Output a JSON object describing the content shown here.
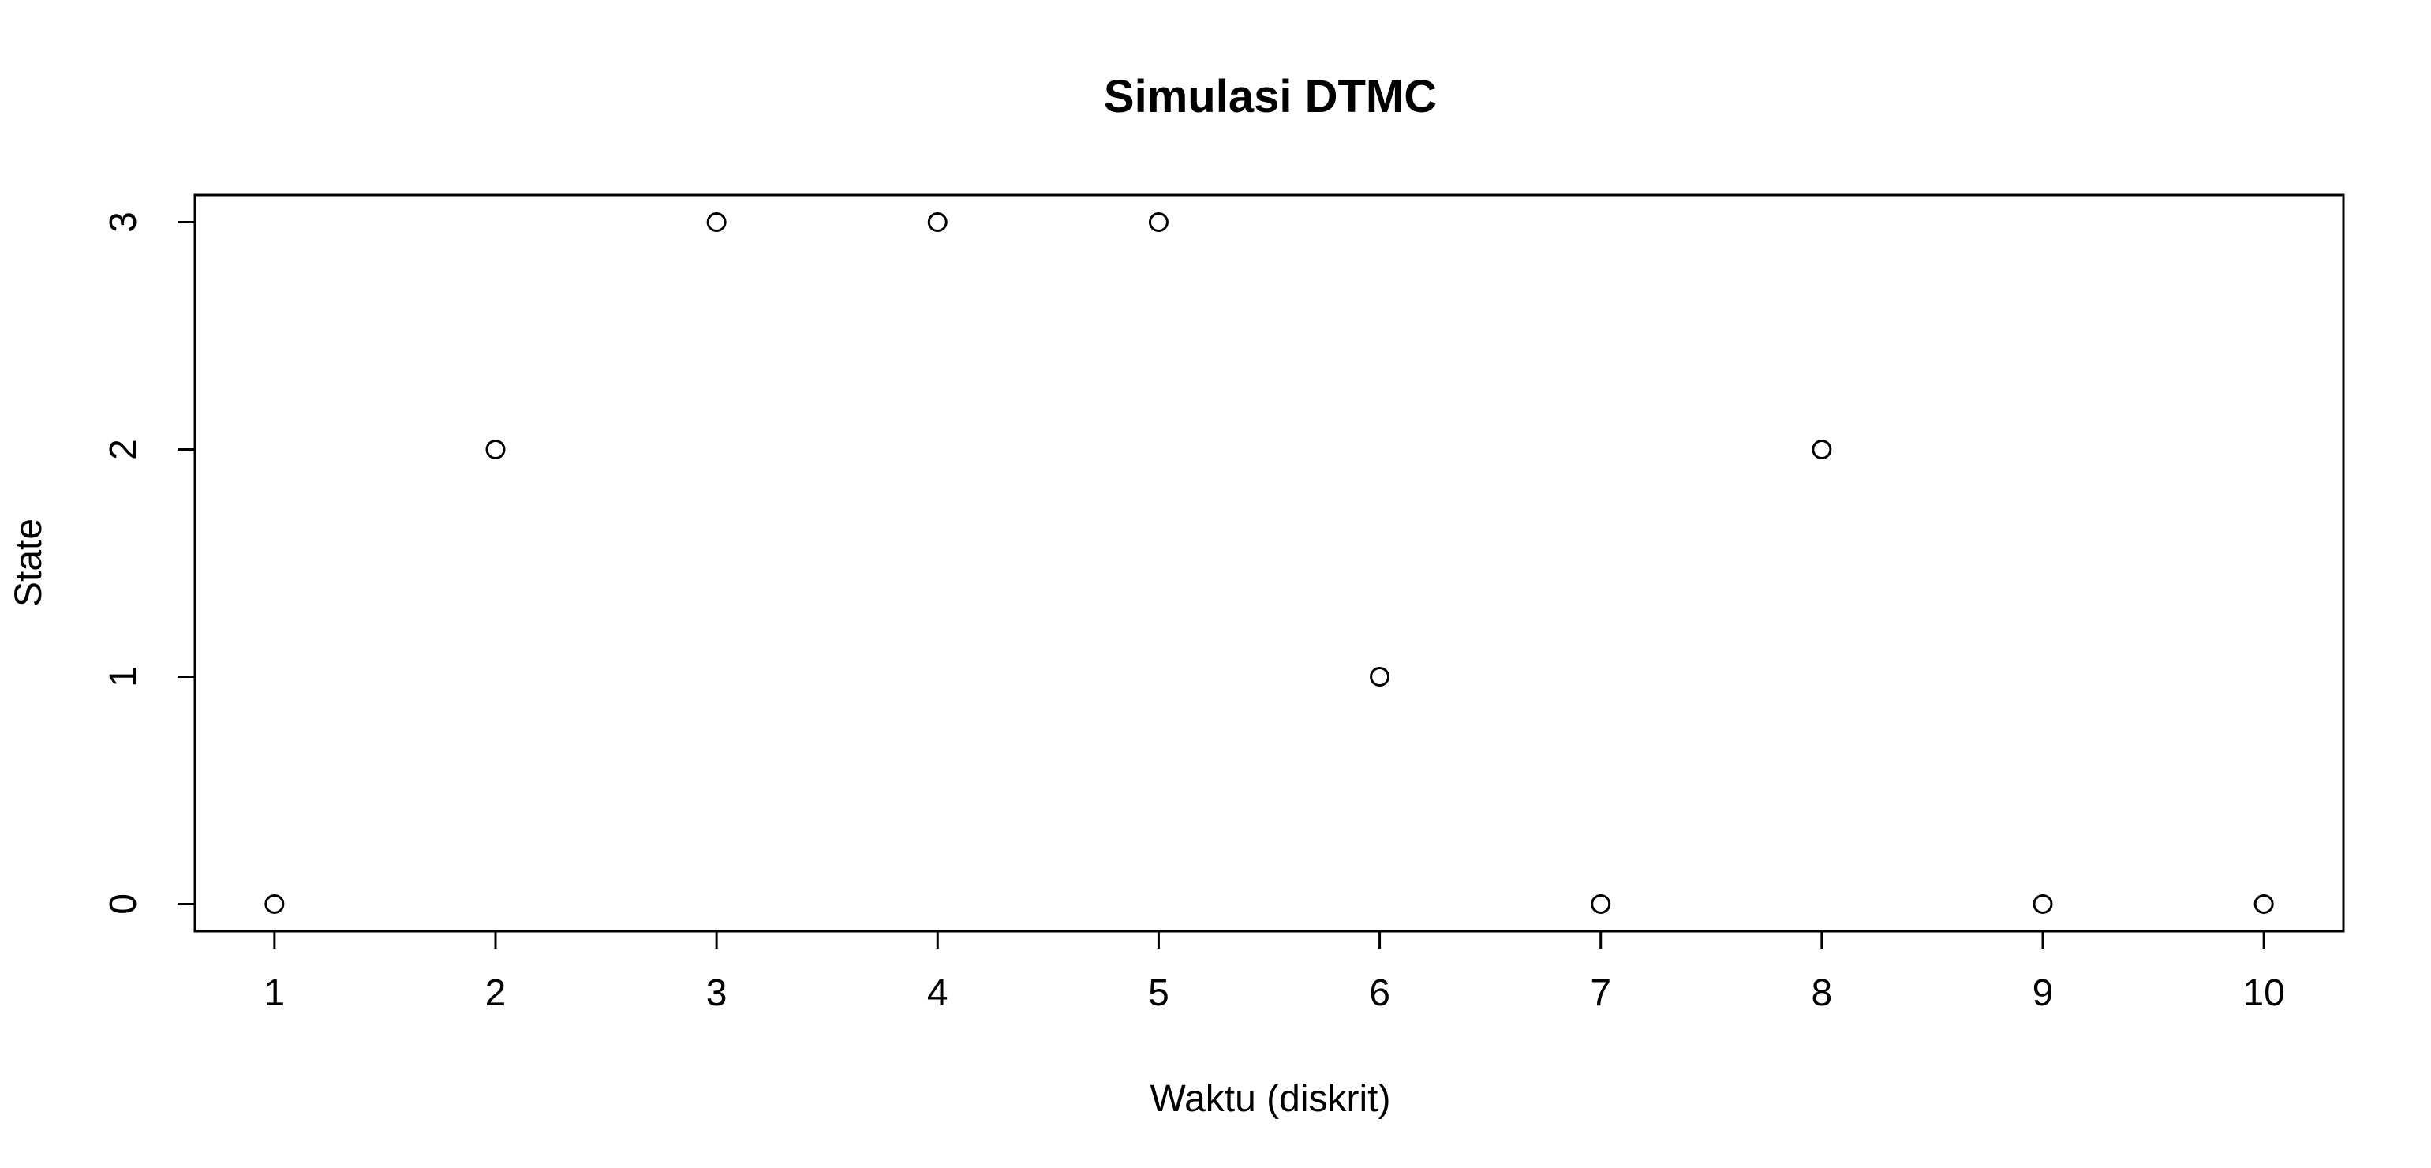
{
  "chart_data": {
    "type": "scatter",
    "title": "Simulasi DTMC",
    "xlabel": "Waktu (diskrit)",
    "ylabel": "State",
    "x": [
      1,
      2,
      3,
      4,
      5,
      6,
      7,
      8,
      9,
      10
    ],
    "y": [
      0,
      2,
      3,
      3,
      3,
      1,
      0,
      2,
      0,
      0
    ],
    "xlim": [
      0.64,
      10.36
    ],
    "ylim": [
      -0.12,
      3.12
    ],
    "x_ticks": [
      1,
      2,
      3,
      4,
      5,
      6,
      7,
      8,
      9,
      10
    ],
    "x_tick_labels": [
      "1",
      "2",
      "3",
      "4",
      "5",
      "6",
      "7",
      "8",
      "9",
      "10"
    ],
    "y_ticks": [
      0,
      1,
      2,
      3
    ],
    "y_tick_labels": [
      "0",
      "1",
      "2",
      "3"
    ],
    "marker": "open-circle",
    "point_color": "#000000",
    "grid": false,
    "legend": "none"
  }
}
